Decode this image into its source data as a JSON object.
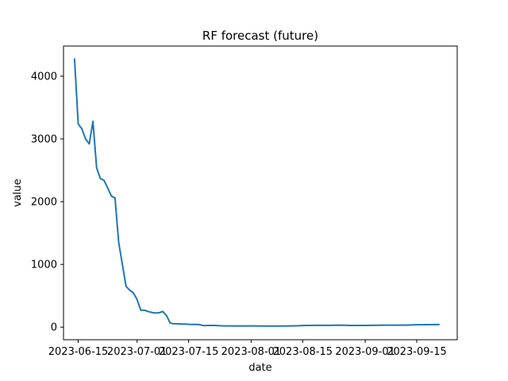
{
  "chart_data": {
    "type": "line",
    "title": "RF forecast (future)",
    "xlabel": "date",
    "ylabel": "value",
    "x_tick_labels": [
      "2023-06-15",
      "2023-07-01",
      "2023-07-15",
      "2023-08-01",
      "2023-08-15",
      "2023-09-01",
      "2023-09-15"
    ],
    "y_tick_labels": [
      "0",
      "1000",
      "2000",
      "3000",
      "4000"
    ],
    "xlim": [
      "2023-06-11",
      "2023-09-26"
    ],
    "ylim": [
      -200,
      4480
    ],
    "grid": false,
    "series": [
      {
        "color": "#1f77b4",
        "x": [
          "2023-06-14",
          "2023-06-15",
          "2023-06-16",
          "2023-06-17",
          "2023-06-18",
          "2023-06-19",
          "2023-06-20",
          "2023-06-21",
          "2023-06-22",
          "2023-06-23",
          "2023-06-24",
          "2023-06-25",
          "2023-06-26",
          "2023-06-27",
          "2023-06-28",
          "2023-06-29",
          "2023-06-30",
          "2023-07-01",
          "2023-07-02",
          "2023-07-03",
          "2023-07-04",
          "2023-07-05",
          "2023-07-06",
          "2023-07-07",
          "2023-07-08",
          "2023-07-09",
          "2023-07-10",
          "2023-07-11",
          "2023-07-12",
          "2023-07-13",
          "2023-07-14",
          "2023-07-15",
          "2023-07-16",
          "2023-07-17",
          "2023-07-18",
          "2023-07-19",
          "2023-07-20",
          "2023-07-21",
          "2023-07-22",
          "2023-07-24",
          "2023-07-26",
          "2023-07-28",
          "2023-07-30",
          "2023-08-01",
          "2023-08-04",
          "2023-08-07",
          "2023-08-10",
          "2023-08-13",
          "2023-08-16",
          "2023-08-19",
          "2023-08-22",
          "2023-08-25",
          "2023-08-28",
          "2023-08-31",
          "2023-09-03",
          "2023-09-06",
          "2023-09-09",
          "2023-09-12",
          "2023-09-15",
          "2023-09-18",
          "2023-09-21"
        ],
        "y": [
          4270,
          3240,
          3160,
          3000,
          2920,
          3280,
          2540,
          2370,
          2340,
          2220,
          2090,
          2060,
          1350,
          1000,
          650,
          590,
          545,
          440,
          270,
          270,
          250,
          235,
          225,
          230,
          250,
          185,
          65,
          55,
          55,
          50,
          50,
          45,
          43,
          43,
          40,
          25,
          28,
          28,
          28,
          22,
          20,
          20,
          20,
          20,
          18,
          18,
          18,
          22,
          28,
          30,
          30,
          32,
          28,
          28,
          30,
          32,
          33,
          32,
          38,
          40,
          42
        ]
      }
    ]
  }
}
